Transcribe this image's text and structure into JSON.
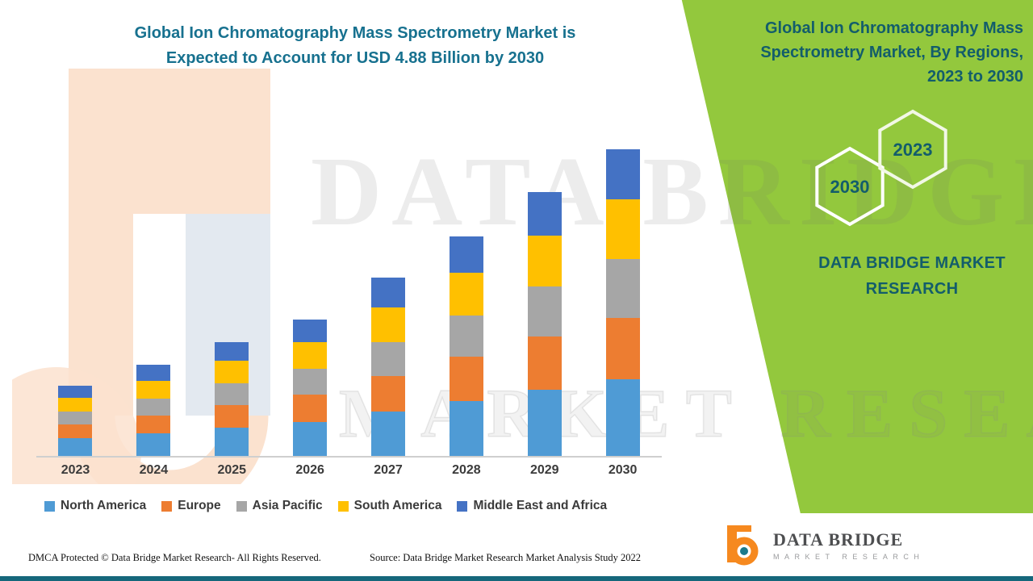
{
  "header": {
    "title_line1": "Global Ion Chromatography Mass Spectrometry Market is",
    "title_line2": "Expected to Account for USD 4.88 Billion by 2030"
  },
  "side_panel": {
    "bg_color": "#93c83d",
    "text_color": "#135d6b",
    "title_line1": "Global Ion Chromatography Mass",
    "title_line2": "Spectrometry Market, By Regions,",
    "title_line3": "2023 to 2030",
    "hexagon_front_label": "2023",
    "hexagon_back_label": "2030",
    "brand_line1": "DATA BRIDGE MARKET",
    "brand_line2": "RESEARCH"
  },
  "watermark": {
    "line1": "DATA BRIDGE",
    "line2": "MARKET RESEARCH"
  },
  "chart_data": {
    "type": "bar",
    "stacked": true,
    "title": "Global Ion Chromatography Mass Spectrometry Market is Expected to Account for USD 4.88 Billion by 2030",
    "unit": "USD Billion (estimated; 2030 total stated as 4.88)",
    "categories": [
      "2023",
      "2024",
      "2025",
      "2026",
      "2027",
      "2028",
      "2029",
      "2030"
    ],
    "series": [
      {
        "name": "North America",
        "color": "#4f9bd5",
        "values": [
          0.28,
          0.36,
          0.45,
          0.54,
          0.7,
          0.87,
          1.05,
          1.22
        ]
      },
      {
        "name": "Europe",
        "color": "#ed7d31",
        "values": [
          0.22,
          0.28,
          0.36,
          0.43,
          0.56,
          0.7,
          0.84,
          0.98
        ]
      },
      {
        "name": "Asia Pacific",
        "color": "#a6a6a6",
        "values": [
          0.2,
          0.27,
          0.34,
          0.41,
          0.54,
          0.66,
          0.8,
          0.93
        ]
      },
      {
        "name": "South America",
        "color": "#ffc000",
        "values": [
          0.22,
          0.28,
          0.36,
          0.42,
          0.55,
          0.68,
          0.81,
          0.95
        ]
      },
      {
        "name": "Middle East and Africa",
        "color": "#4472c4",
        "values": [
          0.19,
          0.25,
          0.3,
          0.36,
          0.47,
          0.58,
          0.69,
          0.8
        ]
      }
    ],
    "totals_estimated": [
      1.11,
      1.44,
      1.81,
      2.16,
      2.82,
      3.49,
      4.19,
      4.88
    ],
    "ylim": [
      0,
      5.3
    ],
    "grid": false,
    "legend_position": "bottom"
  },
  "footer": {
    "dmca": "DMCA Protected © Data Bridge Market Research- All Rights Reserved.",
    "source": "Source: Data Bridge Market Research Market Analysis Study 2022"
  },
  "logo": {
    "wordmark": "DATA BRIDGE",
    "subtext": "MARKET RESEARCH"
  }
}
